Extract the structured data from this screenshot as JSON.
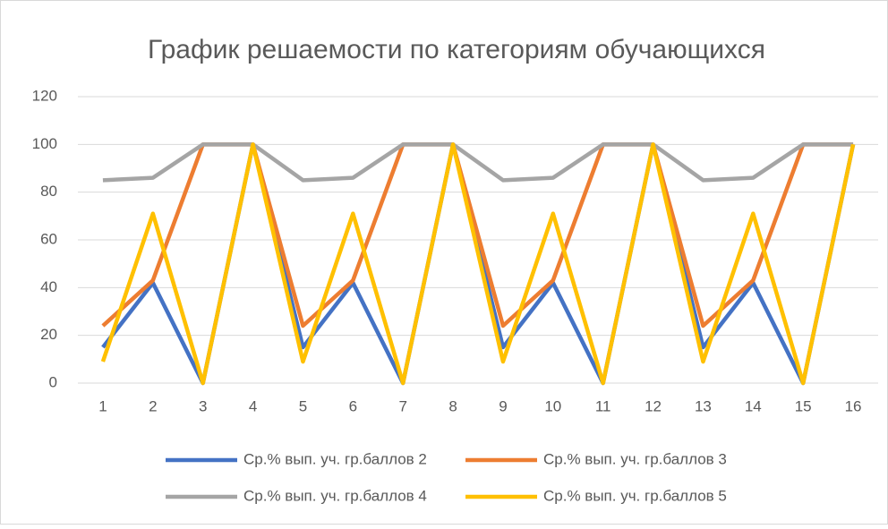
{
  "chart_data": {
    "type": "line",
    "title": "График решаемости по категориям обучающихся",
    "categories": [
      "1",
      "2",
      "3",
      "4",
      "5",
      "6",
      "7",
      "8",
      "9",
      "10",
      "11",
      "12",
      "13",
      "14",
      "15",
      "16"
    ],
    "series": [
      {
        "name": "Ср.% вып. уч. гр.баллов 2",
        "color": "#4472c4",
        "values": [
          15,
          42,
          0,
          100,
          15,
          42,
          0,
          100,
          15,
          42,
          0,
          100,
          15,
          42,
          0,
          100
        ]
      },
      {
        "name": "Ср.% вып. уч. гр.баллов 3",
        "color": "#ed7d31",
        "values": [
          24,
          43,
          100,
          100,
          24,
          43,
          100,
          100,
          24,
          43,
          100,
          100,
          24,
          43,
          100,
          100
        ]
      },
      {
        "name": "Ср.% вып. уч. гр.баллов 4",
        "color": "#a5a5a5",
        "values": [
          85,
          86,
          100,
          100,
          85,
          86,
          100,
          100,
          85,
          86,
          100,
          100,
          85,
          86,
          100,
          100
        ]
      },
      {
        "name": "Ср.% вып. уч. гр.баллов 5",
        "color": "#ffc000",
        "values": [
          9,
          71,
          0,
          100,
          9,
          71,
          0,
          100,
          9,
          71,
          0,
          100,
          9,
          71,
          0,
          100
        ]
      }
    ],
    "ylim": [
      0,
      120
    ],
    "yticks": [
      0,
      20,
      40,
      60,
      80,
      100,
      120
    ],
    "grid": true,
    "legend": "bottom"
  }
}
